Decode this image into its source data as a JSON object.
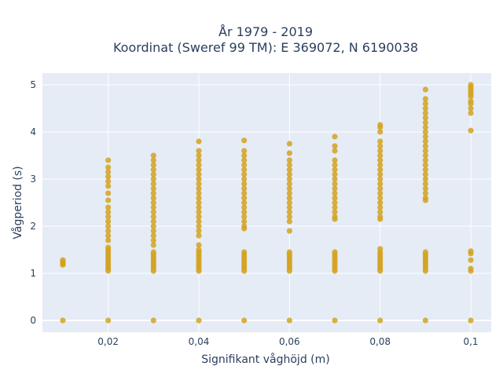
{
  "chart_data": {
    "type": "scatter",
    "title_line1": "År 1979 - 2019",
    "title_line2": "Koordinat (Sweref 99 TM): E 369072, N 6190038",
    "xlabel": "Signifikant våghöjd (m)",
    "ylabel": "Vågperiod (s)",
    "xlim": [
      0.0055,
      0.1045
    ],
    "ylim": [
      -0.25,
      5.25
    ],
    "x_ticks": [
      0.02,
      0.04,
      0.06,
      0.08,
      0.1
    ],
    "x_tick_labels": [
      "0,02",
      "0,04",
      "0,06",
      "0,08",
      "0,1"
    ],
    "y_ticks": [
      0,
      1,
      2,
      3,
      4,
      5
    ],
    "y_tick_labels": [
      "0",
      "1",
      "2",
      "3",
      "4",
      "5"
    ],
    "grid": true,
    "marker_color": "#d4a21f",
    "plot_background": "#e5ecf6",
    "series": [
      {
        "points": [
          {
            "x": 0.01,
            "y": [
              0,
              1.18,
              1.2,
              1.22,
              1.25,
              1.28
            ]
          },
          {
            "x": 0.02,
            "y": [
              0,
              1.05,
              1.1,
              1.15,
              1.2,
              1.25,
              1.3,
              1.35,
              1.4,
              1.45,
              1.5,
              1.55,
              1.7,
              1.8,
              1.9,
              2.0,
              2.1,
              2.2,
              2.3,
              2.4,
              2.55,
              2.7,
              2.85,
              2.95,
              3.05,
              3.15,
              3.25,
              3.4
            ]
          },
          {
            "x": 0.03,
            "y": [
              0,
              1.05,
              1.1,
              1.15,
              1.2,
              1.25,
              1.3,
              1.35,
              1.4,
              1.45,
              1.6,
              1.7,
              1.8,
              1.9,
              2.0,
              2.1,
              2.2,
              2.3,
              2.4,
              2.5,
              2.6,
              2.7,
              2.8,
              2.9,
              3.0,
              3.1,
              3.2,
              3.3,
              3.4,
              3.5
            ]
          },
          {
            "x": 0.04,
            "y": [
              0,
              1.05,
              1.1,
              1.15,
              1.2,
              1.25,
              1.3,
              1.35,
              1.4,
              1.45,
              1.5,
              1.6,
              1.8,
              1.9,
              2.0,
              2.1,
              2.2,
              2.3,
              2.4,
              2.5,
              2.6,
              2.7,
              2.8,
              2.9,
              3.0,
              3.1,
              3.2,
              3.3,
              3.4,
              3.5,
              3.6,
              3.8
            ]
          },
          {
            "x": 0.05,
            "y": [
              0,
              1.05,
              1.1,
              1.15,
              1.2,
              1.25,
              1.3,
              1.35,
              1.4,
              1.45,
              1.95,
              2.0,
              2.1,
              2.2,
              2.3,
              2.4,
              2.5,
              2.6,
              2.7,
              2.8,
              2.9,
              3.0,
              3.1,
              3.2,
              3.3,
              3.4,
              3.5,
              3.6,
              3.82
            ]
          },
          {
            "x": 0.06,
            "y": [
              0,
              1.05,
              1.1,
              1.15,
              1.2,
              1.25,
              1.3,
              1.35,
              1.4,
              1.45,
              1.9,
              2.1,
              2.2,
              2.3,
              2.4,
              2.5,
              2.6,
              2.7,
              2.8,
              2.9,
              3.0,
              3.1,
              3.2,
              3.3,
              3.4,
              3.55,
              3.75
            ]
          },
          {
            "x": 0.07,
            "y": [
              0,
              1.05,
              1.1,
              1.15,
              1.2,
              1.25,
              1.3,
              1.35,
              1.4,
              1.45,
              2.15,
              2.2,
              2.3,
              2.4,
              2.5,
              2.6,
              2.7,
              2.8,
              2.9,
              3.0,
              3.1,
              3.2,
              3.3,
              3.4,
              3.6,
              3.7,
              3.9
            ]
          },
          {
            "x": 0.08,
            "y": [
              0,
              1.05,
              1.1,
              1.15,
              1.2,
              1.25,
              1.3,
              1.35,
              1.4,
              1.45,
              1.52,
              2.15,
              2.2,
              2.3,
              2.4,
              2.5,
              2.6,
              2.7,
              2.8,
              2.9,
              3.0,
              3.1,
              3.2,
              3.3,
              3.4,
              3.5,
              3.6,
              3.7,
              3.8,
              4.0,
              4.1,
              4.15
            ]
          },
          {
            "x": 0.09,
            "y": [
              0,
              1.05,
              1.1,
              1.15,
              1.2,
              1.25,
              1.3,
              1.35,
              1.4,
              1.45,
              2.55,
              2.6,
              2.7,
              2.8,
              2.9,
              3.0,
              3.1,
              3.2,
              3.3,
              3.4,
              3.5,
              3.6,
              3.7,
              3.8,
              3.9,
              4.0,
              4.1,
              4.2,
              4.3,
              4.4,
              4.5,
              4.6,
              4.7,
              4.9
            ]
          },
          {
            "x": 0.1,
            "y": [
              0,
              1.05,
              1.1,
              1.28,
              1.42,
              1.47,
              4.03,
              4.4,
              4.5,
              4.6,
              4.65,
              4.75,
              4.8,
              4.85,
              4.9,
              4.95,
              5.0
            ]
          }
        ]
      }
    ]
  }
}
